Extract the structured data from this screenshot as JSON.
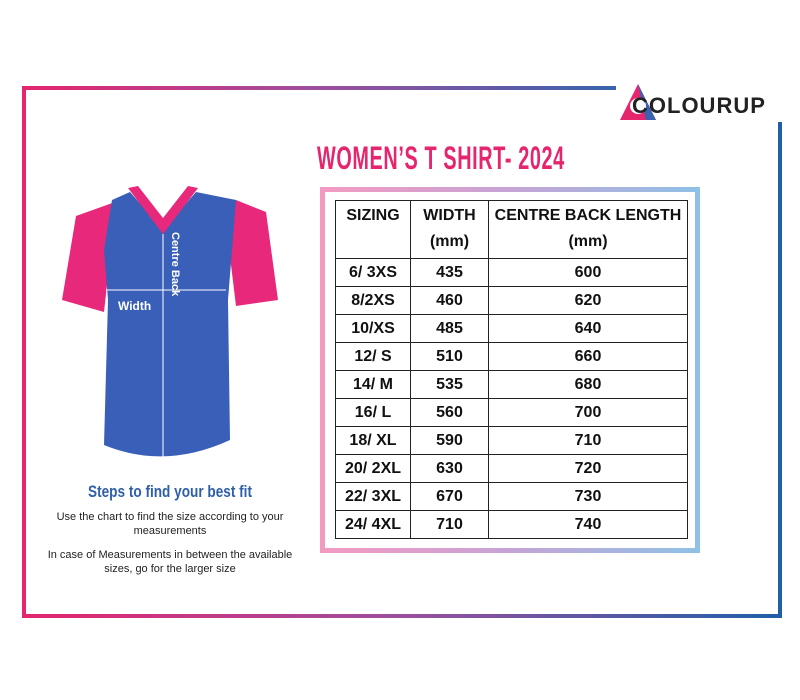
{
  "brand": "COLOURUP",
  "title": "WOMEN’S T SHIRT- 2024",
  "diagram": {
    "centre_label": "Centre Back",
    "width_label": "Width"
  },
  "table": {
    "header": [
      [
        "SIZING"
      ],
      [
        "WIDTH",
        "(mm)"
      ],
      [
        "CENTRE BACK LENGTH",
        "(mm)"
      ]
    ],
    "rows": [
      [
        "6/ 3XS",
        435,
        600
      ],
      [
        "8/2XS",
        460,
        620
      ],
      [
        "10/XS",
        485,
        640
      ],
      [
        "12/ S",
        510,
        660
      ],
      [
        "14/ M",
        535,
        680
      ],
      [
        "16/ L",
        560,
        700
      ],
      [
        "18/ XL",
        590,
        710
      ],
      [
        "20/ 2XL",
        630,
        720
      ],
      [
        "22/ 3XL",
        670,
        730
      ],
      [
        "24/ 4XL",
        710,
        740
      ]
    ]
  },
  "tips": {
    "heading": "Steps to find your best fit",
    "lines": [
      "Use the chart to find the size according to your measurements",
      "In case of Measurements in between the available sizes, go for the larger size"
    ]
  }
}
